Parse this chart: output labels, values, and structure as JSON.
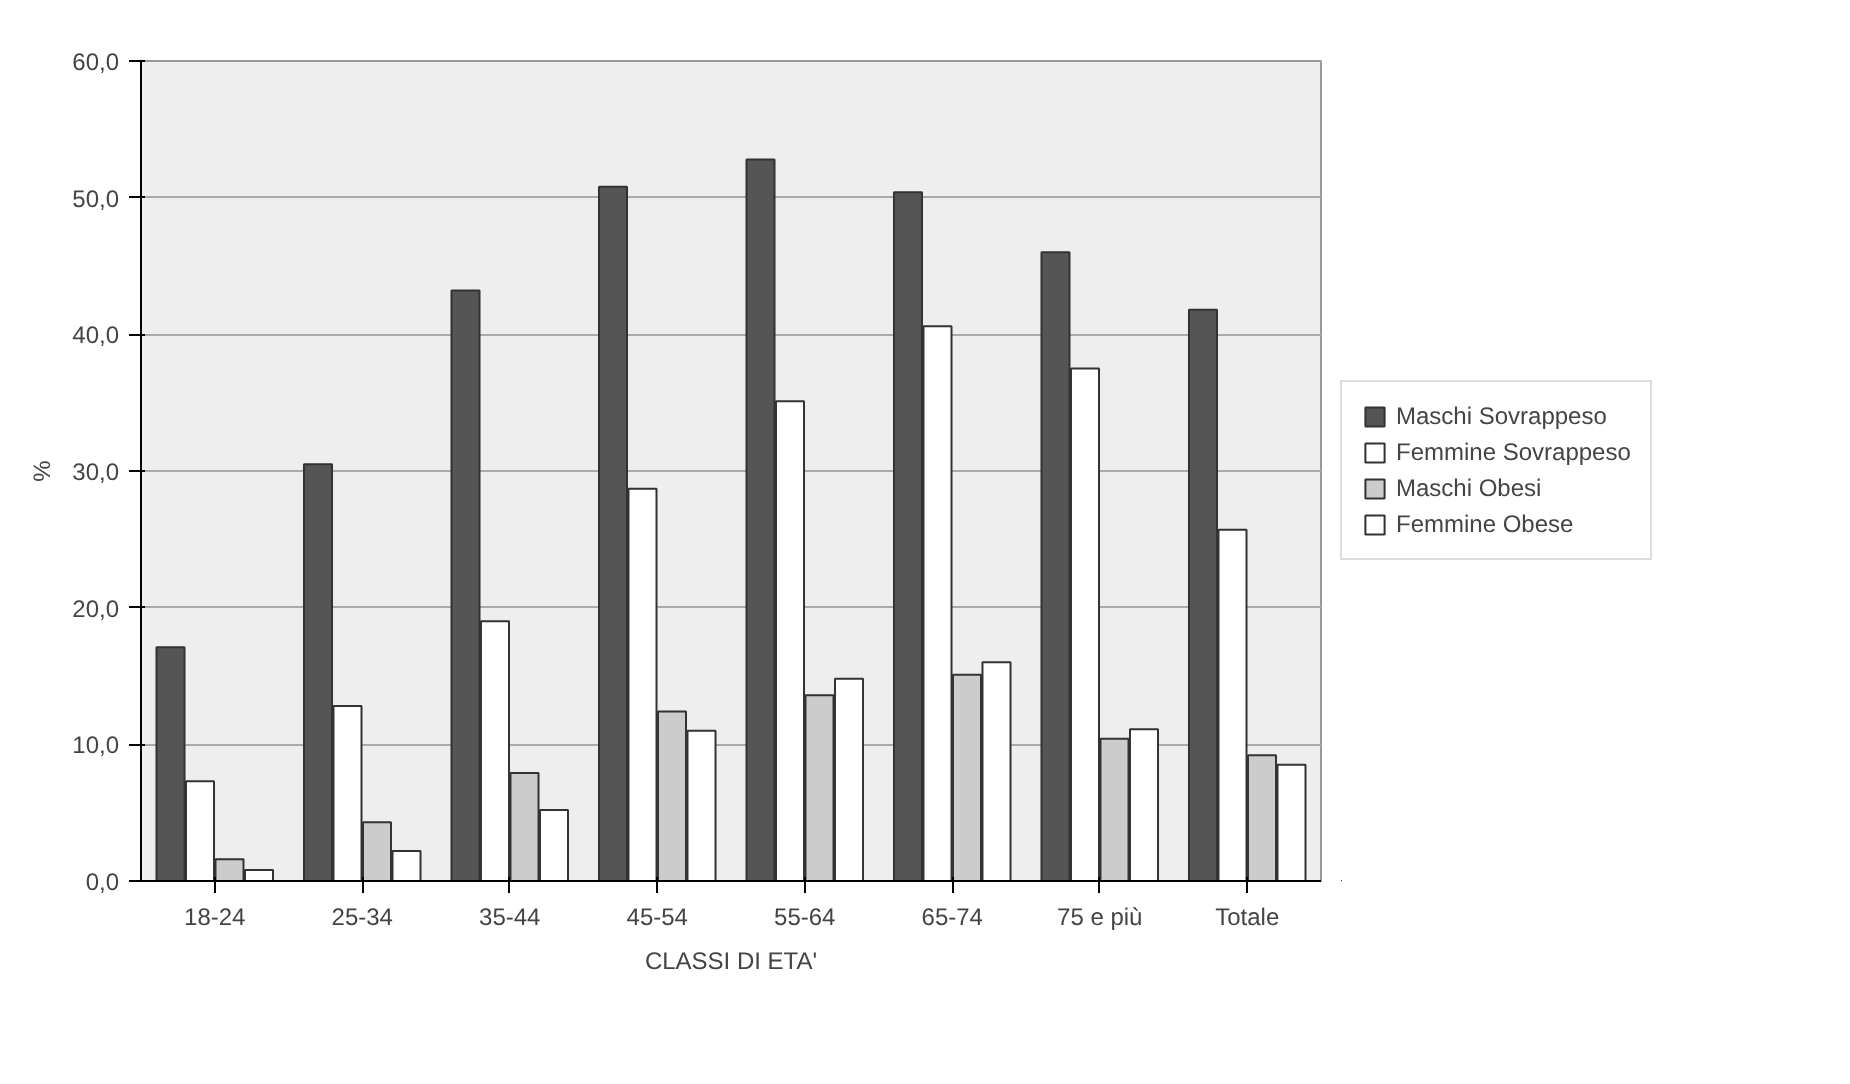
{
  "chart_data": {
    "type": "bar",
    "xlabel": "CLASSI DI ETA'",
    "ylabel": "%",
    "categories": [
      "18-24",
      "25-34",
      "35-44",
      "45-54",
      "55-64",
      "65-74",
      "75 e più",
      "Totale"
    ],
    "series": [
      {
        "name": "Maschi Sovrappeso",
        "color": "#555555",
        "values": [
          17.1,
          30.5,
          43.2,
          50.8,
          52.8,
          50.4,
          46.0,
          41.8
        ]
      },
      {
        "name": "Femmine Sovrappeso",
        "color": "#ffffff",
        "values": [
          7.3,
          12.8,
          19.0,
          28.7,
          35.1,
          40.6,
          37.5,
          25.7
        ]
      },
      {
        "name": "Maschi Obesi",
        "color": "#cccccc",
        "values": [
          1.6,
          4.3,
          7.9,
          12.4,
          13.6,
          15.1,
          10.4,
          9.2
        ]
      },
      {
        "name": "Femmine Obese",
        "color": "#ffffff",
        "values": [
          0.8,
          2.2,
          5.2,
          11.0,
          14.8,
          16.0,
          11.1,
          8.5
        ]
      }
    ],
    "ylim": [
      0,
      60
    ],
    "yticks": [
      {
        "value": 0,
        "label": "0,0"
      },
      {
        "value": 10,
        "label": "10,0"
      },
      {
        "value": 20,
        "label": "20,0"
      },
      {
        "value": 30,
        "label": "30,0"
      },
      {
        "value": 40,
        "label": "40,0"
      },
      {
        "value": 50,
        "label": "50,0"
      },
      {
        "value": 60,
        "label": "60,0"
      }
    ],
    "grid": "y",
    "legend": "right"
  }
}
